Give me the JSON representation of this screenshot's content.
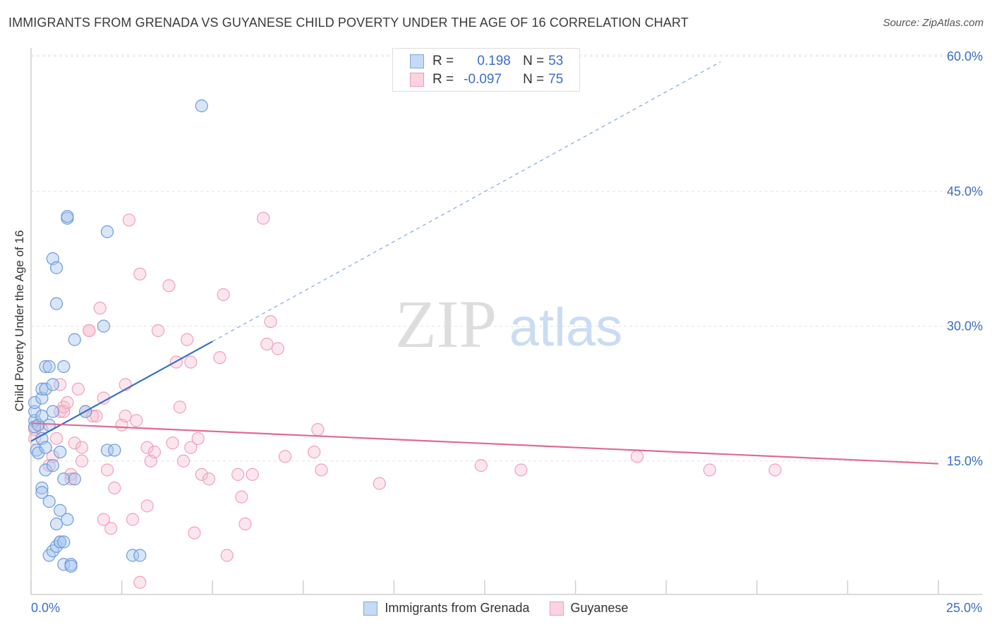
{
  "header": {
    "title": "IMMIGRANTS FROM GRENADA VS GUYANESE CHILD POVERTY UNDER THE AGE OF 16 CORRELATION CHART",
    "source": "Source: ZipAtlas.com"
  },
  "watermark": {
    "zip": "ZIP",
    "atlas": "atlas"
  },
  "legend": {
    "rows": [
      {
        "r_label": "R =",
        "r_value": "0.198",
        "n_label": "N =",
        "n_value": "53",
        "color": "#a8c8f0"
      },
      {
        "r_label": "R =",
        "r_value": "-0.097",
        "n_label": "N =",
        "n_value": "75",
        "color": "#f7b8cb"
      }
    ]
  },
  "bottom_legend": {
    "items": [
      {
        "label": "Immigrants from Grenada",
        "color": "#a8c8f0"
      },
      {
        "label": "Guyanese",
        "color": "#f7b8cb"
      }
    ]
  },
  "axis_labels": {
    "x_min": "0.0%",
    "x_max": "25.0%"
  },
  "chart_data": {
    "type": "scatter",
    "title": "IMMIGRANTS FROM GRENADA VS GUYANESE CHILD POVERTY UNDER THE AGE OF 16 CORRELATION CHART",
    "xlabel": "",
    "ylabel": "Child Poverty Under the Age of 16",
    "xlim": [
      0,
      25
    ],
    "ylim": [
      0,
      60
    ],
    "y_ticks": [
      15,
      30,
      45,
      60
    ],
    "y_tick_labels": [
      "15.0%",
      "30.0%",
      "45.0%",
      "60.0%"
    ],
    "grid": true,
    "colors": {
      "blue": "#3a6fc4",
      "pink": "#e06a93",
      "blue_fill": "#a8c8f0",
      "pink_fill": "#f7b8cb"
    },
    "series": [
      {
        "name": "Immigrants from Grenada",
        "trend": {
          "x0": 0,
          "y0": 17.2,
          "x1": 5,
          "y1": 28.3,
          "extended_to_x": 19,
          "extended_to_y": 59.4
        },
        "points": [
          [
            0.1,
            19.5
          ],
          [
            0.1,
            18.8
          ],
          [
            0.1,
            20.5
          ],
          [
            0.1,
            21.5
          ],
          [
            0.15,
            16.2
          ],
          [
            0.2,
            15.9
          ],
          [
            0.2,
            19.0
          ],
          [
            0.3,
            17.5
          ],
          [
            0.3,
            22.0
          ],
          [
            0.3,
            23.0
          ],
          [
            0.3,
            20.0
          ],
          [
            0.3,
            12.0
          ],
          [
            0.3,
            11.5
          ],
          [
            0.4,
            23.0
          ],
          [
            0.4,
            25.5
          ],
          [
            0.4,
            16.5
          ],
          [
            0.4,
            14.0
          ],
          [
            0.5,
            19.0
          ],
          [
            0.5,
            10.5
          ],
          [
            0.5,
            4.5
          ],
          [
            0.5,
            25.5
          ],
          [
            0.6,
            23.5
          ],
          [
            0.6,
            20.5
          ],
          [
            0.6,
            14.5
          ],
          [
            0.6,
            37.5
          ],
          [
            0.6,
            5.0
          ],
          [
            0.7,
            32.5
          ],
          [
            0.7,
            36.5
          ],
          [
            0.7,
            5.5
          ],
          [
            0.7,
            8.0
          ],
          [
            0.8,
            9.5
          ],
          [
            0.8,
            6.0
          ],
          [
            0.8,
            16.0
          ],
          [
            0.8,
            6.0
          ],
          [
            0.9,
            13.0
          ],
          [
            0.9,
            25.5
          ],
          [
            0.9,
            3.5
          ],
          [
            0.9,
            6.0
          ],
          [
            1.0,
            42.0
          ],
          [
            1.0,
            42.2
          ],
          [
            1.0,
            8.5
          ],
          [
            1.1,
            3.5
          ],
          [
            1.1,
            3.3
          ],
          [
            1.2,
            28.5
          ],
          [
            1.2,
            13.0
          ],
          [
            1.5,
            20.5
          ],
          [
            2.0,
            30.0
          ],
          [
            2.1,
            16.2
          ],
          [
            2.1,
            40.5
          ],
          [
            2.3,
            16.2
          ],
          [
            2.8,
            4.5
          ],
          [
            3.0,
            4.5
          ],
          [
            4.7,
            54.5
          ]
        ]
      },
      {
        "name": "Guyanese",
        "trend": {
          "x0": 0,
          "y0": 19.2,
          "x1": 25,
          "y1": 14.7
        },
        "points": [
          [
            0.1,
            18.5
          ],
          [
            0.1,
            17.5
          ],
          [
            0.2,
            19.0
          ],
          [
            0.3,
            18.5
          ],
          [
            0.5,
            14.5
          ],
          [
            0.6,
            15.5
          ],
          [
            0.7,
            17.5
          ],
          [
            0.8,
            23.5
          ],
          [
            0.8,
            20.5
          ],
          [
            0.9,
            21.0
          ],
          [
            0.9,
            20.5
          ],
          [
            1.0,
            21.5
          ],
          [
            1.1,
            13.5
          ],
          [
            1.1,
            13.0
          ],
          [
            1.2,
            17.0
          ],
          [
            1.3,
            23.0
          ],
          [
            1.4,
            15.0
          ],
          [
            1.4,
            16.5
          ],
          [
            1.5,
            20.5
          ],
          [
            1.6,
            29.5
          ],
          [
            1.7,
            20.0
          ],
          [
            1.8,
            20.0
          ],
          [
            1.9,
            32.0
          ],
          [
            2.0,
            8.5
          ],
          [
            2.0,
            22.0
          ],
          [
            2.1,
            14.0
          ],
          [
            2.2,
            7.5
          ],
          [
            2.3,
            12.0
          ],
          [
            2.5,
            19.0
          ],
          [
            2.6,
            20.0
          ],
          [
            2.6,
            23.5
          ],
          [
            2.7,
            41.8
          ],
          [
            2.8,
            8.5
          ],
          [
            2.9,
            19.5
          ],
          [
            3.0,
            35.8
          ],
          [
            3.2,
            16.5
          ],
          [
            3.2,
            10.0
          ],
          [
            3.3,
            15.0
          ],
          [
            3.4,
            16.0
          ],
          [
            3.5,
            29.5
          ],
          [
            3.8,
            34.5
          ],
          [
            3.9,
            17.0
          ],
          [
            4.0,
            26.0
          ],
          [
            4.1,
            21.0
          ],
          [
            4.2,
            15.0
          ],
          [
            4.3,
            28.5
          ],
          [
            4.4,
            16.5
          ],
          [
            4.4,
            26.0
          ],
          [
            4.5,
            7.0
          ],
          [
            4.6,
            17.5
          ],
          [
            4.7,
            13.5
          ],
          [
            4.9,
            13.0
          ],
          [
            5.2,
            26.5
          ],
          [
            5.3,
            33.5
          ],
          [
            5.4,
            4.5
          ],
          [
            5.7,
            13.5
          ],
          [
            5.8,
            11.0
          ],
          [
            5.9,
            8.0
          ],
          [
            6.1,
            13.5
          ],
          [
            6.4,
            42.0
          ],
          [
            6.5,
            28.0
          ],
          [
            6.6,
            30.5
          ],
          [
            6.8,
            27.5
          ],
          [
            7.0,
            15.5
          ],
          [
            7.8,
            16.0
          ],
          [
            7.9,
            18.5
          ],
          [
            8.0,
            14.0
          ],
          [
            9.6,
            12.5
          ],
          [
            1.6,
            29.5
          ],
          [
            12.4,
            14.5
          ],
          [
            13.5,
            14.0
          ],
          [
            16.7,
            15.5
          ],
          [
            18.7,
            14.0
          ],
          [
            20.5,
            14.0
          ],
          [
            3.0,
            1.5
          ]
        ]
      }
    ]
  }
}
